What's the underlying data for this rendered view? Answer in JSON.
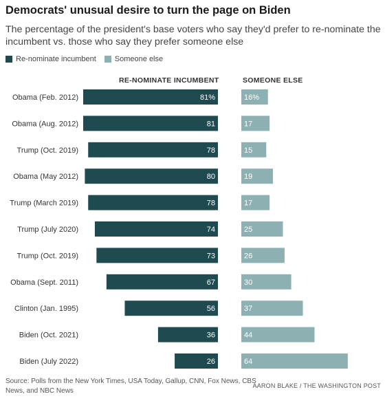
{
  "title": "Democrats' unusual desire to turn the page on Biden",
  "subtitle": "The percentage of the president's base voters who say they'd prefer to re-nominate the incumbent vs. those who say they prefer someone else",
  "legend": {
    "renominate": "Re-nominate incumbent",
    "someone_else": "Someone else"
  },
  "colors": {
    "renominate": "#1f4a4f",
    "someone_else": "#8db1b3"
  },
  "column_headers": {
    "renominate": "RE-NOMINATE INCUMBENT",
    "someone_else": "SOMEONE ELSE"
  },
  "chart_data": {
    "type": "bar",
    "categories": [
      "Obama (Feb. 2012)",
      "Obama (Aug. 2012)",
      "Trump (Oct. 2019)",
      "Obama (May 2012)",
      "Trump (March 2019)",
      "Trump (July 2020)",
      "Trump (Oct. 2019)",
      "Obama (Sept. 2011)",
      "Clinton (Jan. 1995)",
      "Biden (Oct. 2021)",
      "Biden (July 2022)"
    ],
    "series": [
      {
        "name": "Re-nominate incumbent",
        "values": [
          81,
          81,
          78,
          80,
          78,
          74,
          73,
          67,
          56,
          36,
          26
        ],
        "labels": [
          "81%",
          "81",
          "78",
          "80",
          "78",
          "74",
          "73",
          "67",
          "56",
          "36",
          "26"
        ]
      },
      {
        "name": "Someone else",
        "values": [
          16,
          17,
          15,
          19,
          17,
          25,
          26,
          30,
          37,
          44,
          64
        ],
        "labels": [
          "16%",
          "17",
          "15",
          "19",
          "17",
          "25",
          "26",
          "30",
          "37",
          "44",
          "64"
        ]
      }
    ],
    "xlim": [
      0,
      100
    ]
  },
  "source": "Source: Polls from the New York Times, USA Today, Gallup, CNN, Fox News, CBS News, and NBC News",
  "credit": "AARON BLAKE / THE WASHINGTON POST"
}
